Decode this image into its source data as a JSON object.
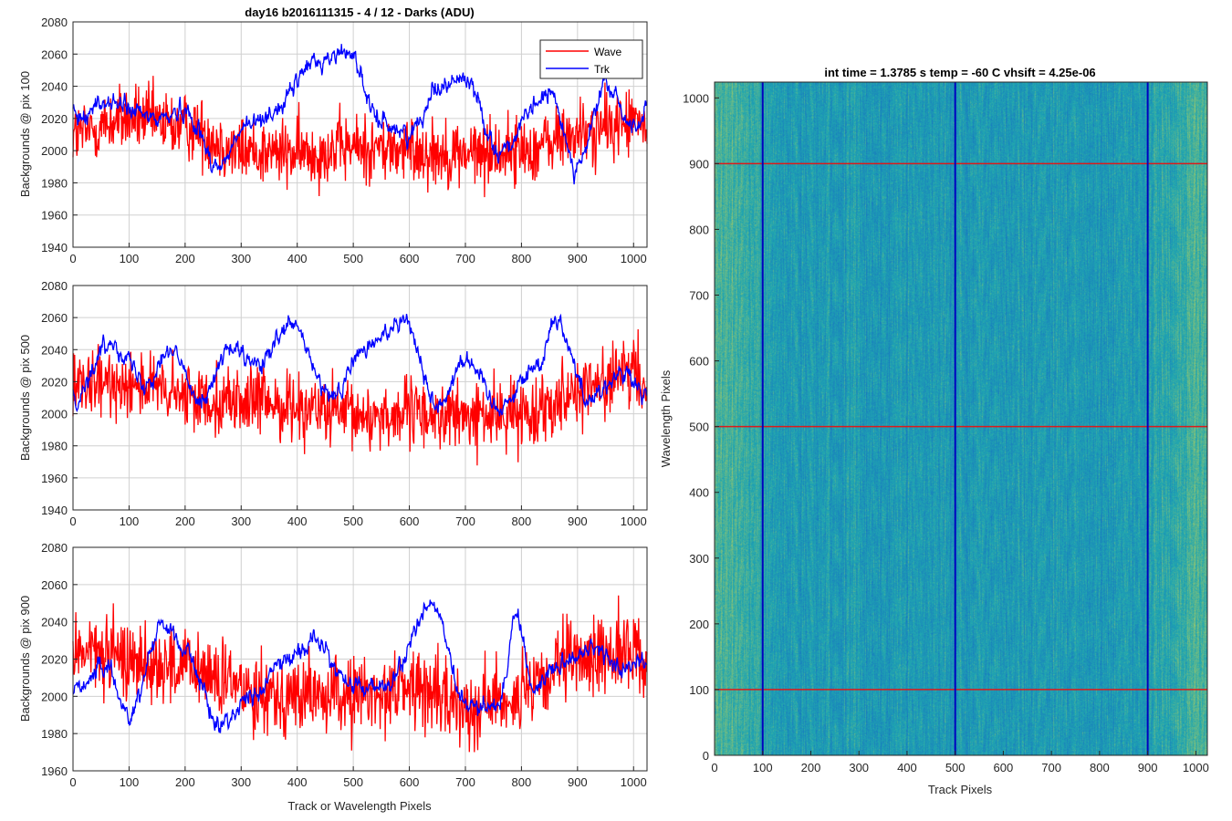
{
  "chart_data": [
    {
      "type": "line",
      "title": "day16 b2016111315 - 4 / 12 - Darks (ADU)",
      "xlabel": "",
      "ylabel": "Backgrounds @ pix 100",
      "xlim": [
        0,
        1024
      ],
      "ylim": [
        1940,
        2080
      ],
      "xticks": [
        "0",
        "100",
        "200",
        "300",
        "400",
        "500",
        "600",
        "700",
        "800",
        "900",
        "1000"
      ],
      "yticks": [
        "1940",
        "1960",
        "1980",
        "2000",
        "2020",
        "2040",
        "2060",
        "2080"
      ],
      "grid": true,
      "legend": "top-right",
      "series": [
        {
          "name": "Wave",
          "color": "#ff0000",
          "mean": 2005,
          "amplitude": 15,
          "x": [
            0,
            100,
            200,
            300,
            400,
            500,
            600,
            700,
            800,
            900,
            1000,
            1024
          ],
          "values": [
            2010,
            2020,
            2015,
            2000,
            1998,
            2002,
            2000,
            1998,
            2000,
            2010,
            2018,
            2015
          ]
        },
        {
          "name": "Trk",
          "color": "#0000ff",
          "mean": 2015,
          "amplitude": 6,
          "x": [
            0,
            60,
            150,
            200,
            260,
            310,
            360,
            430,
            495,
            540,
            600,
            650,
            700,
            760,
            850,
            900,
            950,
            1000,
            1024
          ],
          "values": [
            2020,
            2030,
            2020,
            2025,
            1990,
            2015,
            2025,
            2055,
            2062,
            2020,
            2010,
            2040,
            2045,
            2000,
            2035,
            1990,
            2040,
            2015,
            2025
          ]
        }
      ]
    },
    {
      "type": "line",
      "title": "",
      "xlabel": "",
      "ylabel": "Backgrounds @ pix 500",
      "xlim": [
        0,
        1024
      ],
      "ylim": [
        1940,
        2080
      ],
      "xticks": [
        "0",
        "100",
        "200",
        "300",
        "400",
        "500",
        "600",
        "700",
        "800",
        "900",
        "1000"
      ],
      "yticks": [
        "1940",
        "1960",
        "1980",
        "2000",
        "2020",
        "2040",
        "2060",
        "2080"
      ],
      "grid": true,
      "series": [
        {
          "name": "Wave",
          "color": "#ff0000",
          "mean": 2005,
          "amplitude": 15,
          "x": [
            0,
            100,
            200,
            300,
            400,
            500,
            600,
            700,
            800,
            900,
            1000,
            1024
          ],
          "values": [
            2015,
            2020,
            2010,
            2008,
            2005,
            1998,
            2000,
            1998,
            2000,
            2015,
            2025,
            2015
          ]
        },
        {
          "name": "Trk",
          "color": "#0000ff",
          "mean": 2018,
          "amplitude": 6,
          "x": [
            0,
            70,
            130,
            170,
            230,
            280,
            330,
            390,
            460,
            520,
            590,
            650,
            700,
            760,
            830,
            860,
            920,
            980,
            1024
          ],
          "values": [
            2010,
            2045,
            2020,
            2040,
            2010,
            2040,
            2030,
            2055,
            2010,
            2040,
            2060,
            2005,
            2035,
            2005,
            2030,
            2060,
            2010,
            2025,
            2010
          ]
        }
      ]
    },
    {
      "type": "line",
      "title": "",
      "xlabel": "Track or Wavelength Pixels",
      "ylabel": "Backgrounds @ pix 900",
      "xlim": [
        0,
        1024
      ],
      "ylim": [
        1960,
        2080
      ],
      "xticks": [
        "0",
        "100",
        "200",
        "300",
        "400",
        "500",
        "600",
        "700",
        "800",
        "900",
        "1000"
      ],
      "yticks": [
        "1960",
        "1980",
        "2000",
        "2020",
        "2040",
        "2060",
        "2080"
      ],
      "grid": true,
      "series": [
        {
          "name": "Wave",
          "color": "#ff0000",
          "mean": 2008,
          "amplitude": 15,
          "x": [
            0,
            100,
            200,
            300,
            400,
            500,
            600,
            700,
            800,
            900,
            1000,
            1024
          ],
          "values": [
            2025,
            2020,
            2015,
            2005,
            2000,
            2000,
            2005,
            1995,
            2000,
            2020,
            2025,
            2015
          ]
        },
        {
          "name": "Trk",
          "color": "#0000ff",
          "mean": 2010,
          "amplitude": 5,
          "x": [
            0,
            60,
            100,
            160,
            200,
            260,
            320,
            380,
            430,
            500,
            560,
            640,
            700,
            760,
            790,
            820,
            880,
            930,
            980,
            1024
          ],
          "values": [
            2005,
            2015,
            1990,
            2040,
            2025,
            1985,
            2000,
            2020,
            2030,
            2005,
            2005,
            2050,
            1995,
            1995,
            2045,
            2005,
            2020,
            2025,
            2015,
            2020
          ]
        }
      ]
    },
    {
      "type": "heatmap",
      "title": "int time = 1.3785 s    temp = -60 C    vhsift = 4.25e-06",
      "xlabel": "Track Pixels",
      "ylabel": "Wavelength Pixels",
      "xlim": [
        0,
        1024
      ],
      "ylim": [
        0,
        1024
      ],
      "xticks": [
        "0",
        "100",
        "200",
        "300",
        "400",
        "500",
        "600",
        "700",
        "800",
        "900",
        "1000"
      ],
      "yticks": [
        "0",
        "100",
        "200",
        "300",
        "400",
        "500",
        "600",
        "700",
        "800",
        "900",
        "1000"
      ],
      "colors": {
        "low": "#1463c8",
        "mid": "#20a6b0",
        "high": "#b9cf5a"
      },
      "marker_lines": {
        "vertical": {
          "x": [
            100,
            500,
            900
          ],
          "color": "#0000c0"
        },
        "horizontal": {
          "y": [
            100,
            500,
            900
          ],
          "color": "#dd1a1a"
        }
      }
    }
  ]
}
